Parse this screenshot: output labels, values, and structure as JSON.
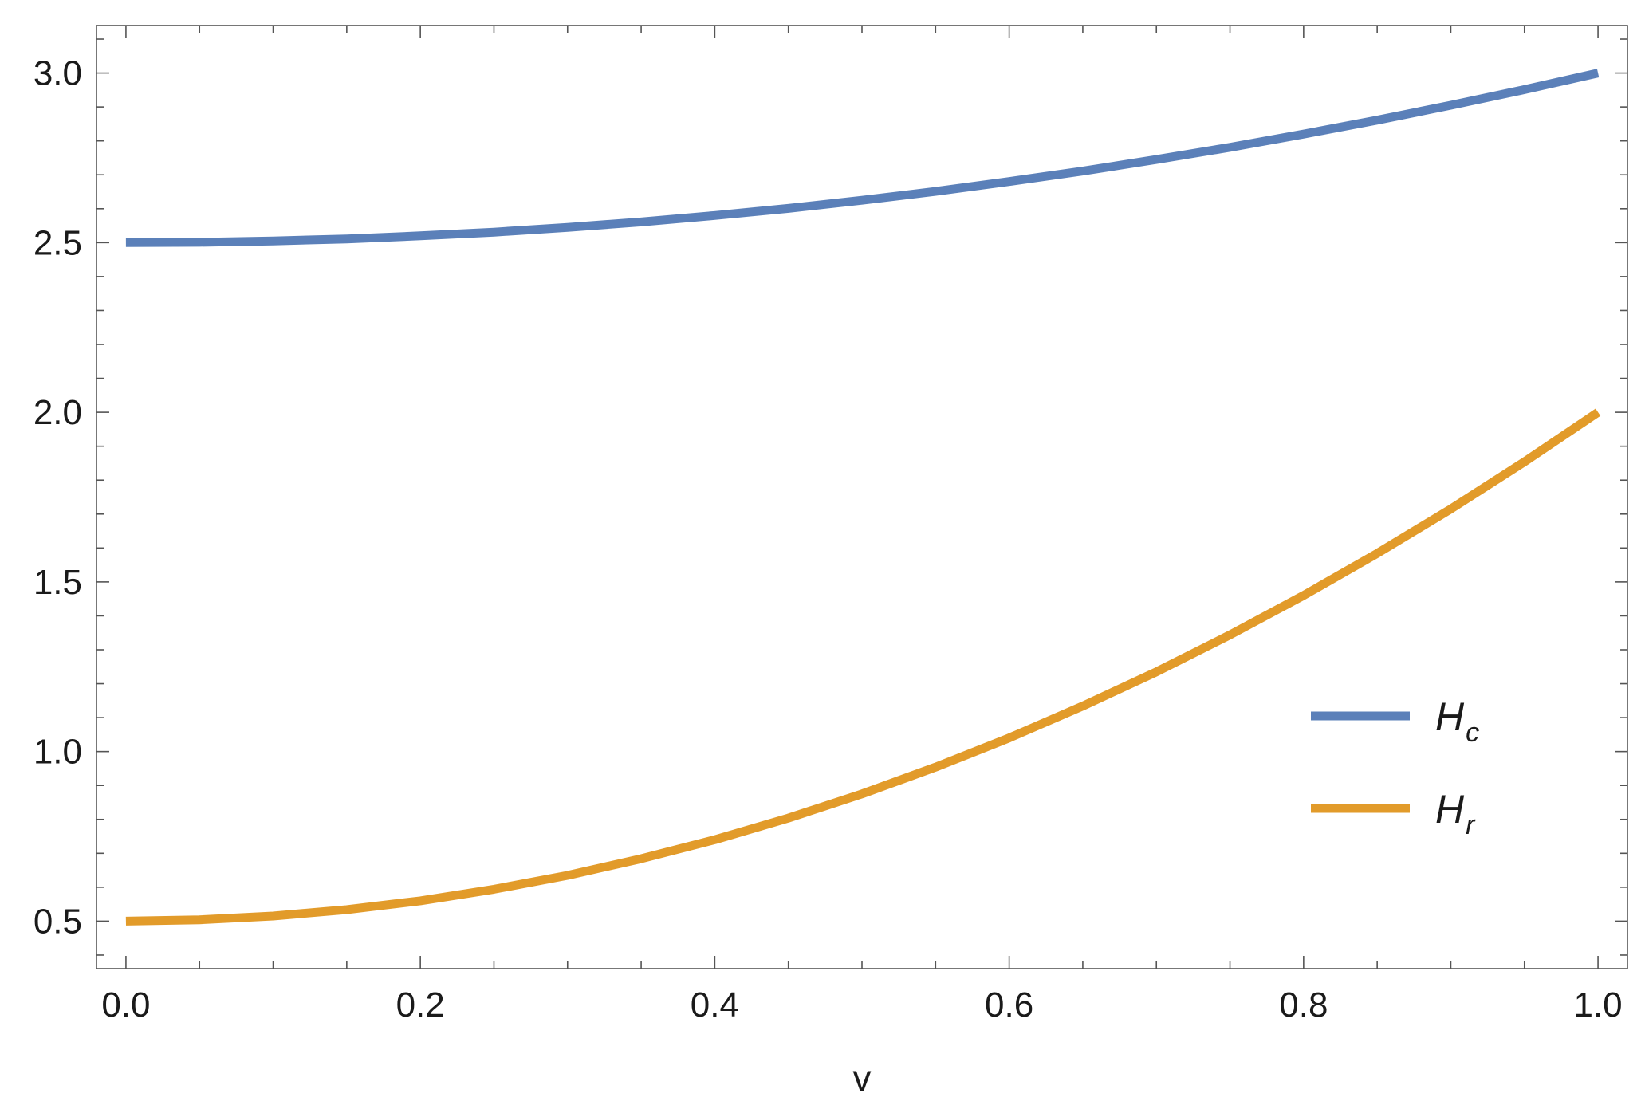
{
  "chart_data": {
    "type": "line",
    "title": "",
    "xlabel": "v",
    "ylabel": "",
    "xlim": [
      -0.02,
      1.02
    ],
    "ylim": [
      0.36,
      3.14
    ],
    "x_ticks": [
      0.0,
      0.2,
      0.4,
      0.6,
      0.8,
      1.0
    ],
    "x_tick_labels": [
      "0.0",
      "0.2",
      "0.4",
      "0.6",
      "0.8",
      "1.0"
    ],
    "y_ticks": [
      0.5,
      1.0,
      1.5,
      2.0,
      2.5,
      3.0
    ],
    "y_tick_labels": [
      "0.5",
      "1.0",
      "1.5",
      "2.0",
      "2.5",
      "3.0"
    ],
    "grid": false,
    "legend_position": "right",
    "x": [
      0.0,
      0.05,
      0.1,
      0.15,
      0.2,
      0.25,
      0.3,
      0.35,
      0.4,
      0.45,
      0.5,
      0.55,
      0.6,
      0.65,
      0.7,
      0.75,
      0.8,
      0.85,
      0.9,
      0.95,
      1.0
    ],
    "series": [
      {
        "name": "H",
        "subscript": "c",
        "color": "#5b80b9",
        "values": [
          2.5,
          2.501,
          2.505,
          2.511,
          2.52,
          2.531,
          2.545,
          2.561,
          2.58,
          2.601,
          2.625,
          2.651,
          2.68,
          2.711,
          2.745,
          2.781,
          2.82,
          2.861,
          2.905,
          2.951,
          3.0
        ]
      },
      {
        "name": "H",
        "subscript": "r",
        "color": "#e29b2a",
        "values": [
          0.5,
          0.504,
          0.515,
          0.534,
          0.56,
          0.594,
          0.635,
          0.684,
          0.74,
          0.804,
          0.875,
          0.954,
          1.04,
          1.134,
          1.235,
          1.344,
          1.46,
          1.584,
          1.715,
          1.854,
          2.0
        ]
      }
    ]
  }
}
